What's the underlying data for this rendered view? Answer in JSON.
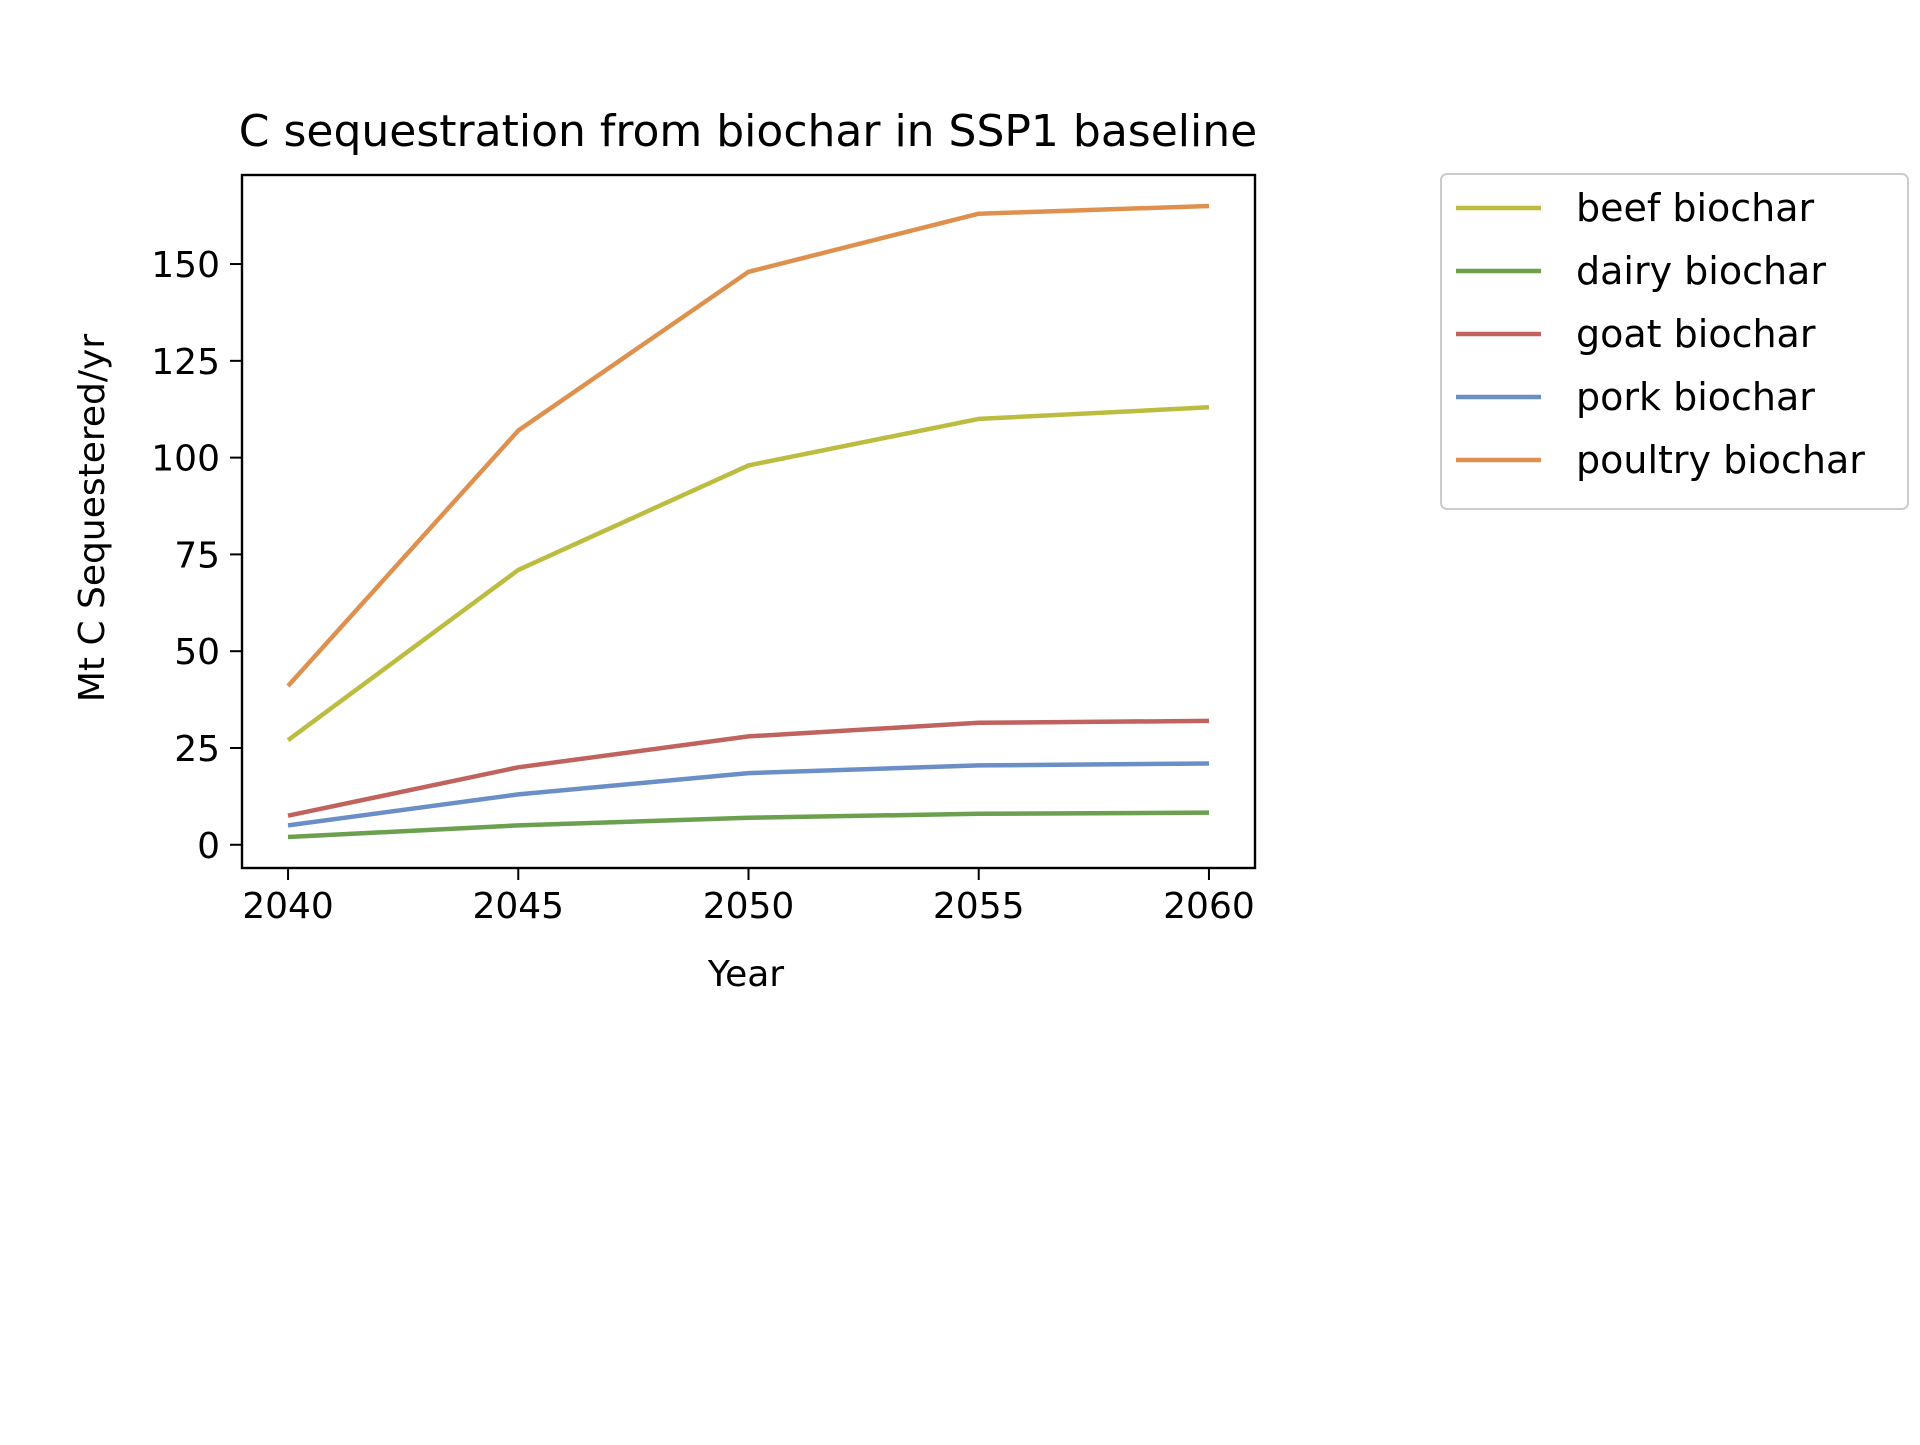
{
  "chart_data": {
    "type": "line",
    "title": "C sequestration from biochar in SSP1 baseline",
    "xlabel": "Year",
    "ylabel": "Mt C Sequestered/yr",
    "x": [
      2040,
      2045,
      2050,
      2055,
      2060
    ],
    "xticks": [
      "2040",
      "2045",
      "2050",
      "2055",
      "2060"
    ],
    "yticks": [
      "0",
      "25",
      "50",
      "75",
      "100",
      "125",
      "150"
    ],
    "xlim": [
      2039,
      2061
    ],
    "ylim": [
      -6,
      173
    ],
    "grid": false,
    "legend_position": "outside right, top",
    "series": [
      {
        "name": "beef biochar",
        "color": "#bcbd40",
        "values": [
          27,
          71,
          98,
          110,
          113
        ]
      },
      {
        "name": "dairy biochar",
        "color": "#6aa04e",
        "values": [
          2,
          5,
          7,
          8,
          8.3
        ]
      },
      {
        "name": "goat biochar",
        "color": "#c0625e",
        "values": [
          7.5,
          20,
          28,
          31.5,
          32
        ]
      },
      {
        "name": "pork biochar",
        "color": "#6a8fc6",
        "values": [
          5,
          13,
          18.5,
          20.5,
          21
        ]
      },
      {
        "name": "poultry biochar",
        "color": "#de914e",
        "values": [
          41,
          107,
          148,
          163,
          165
        ]
      }
    ]
  }
}
